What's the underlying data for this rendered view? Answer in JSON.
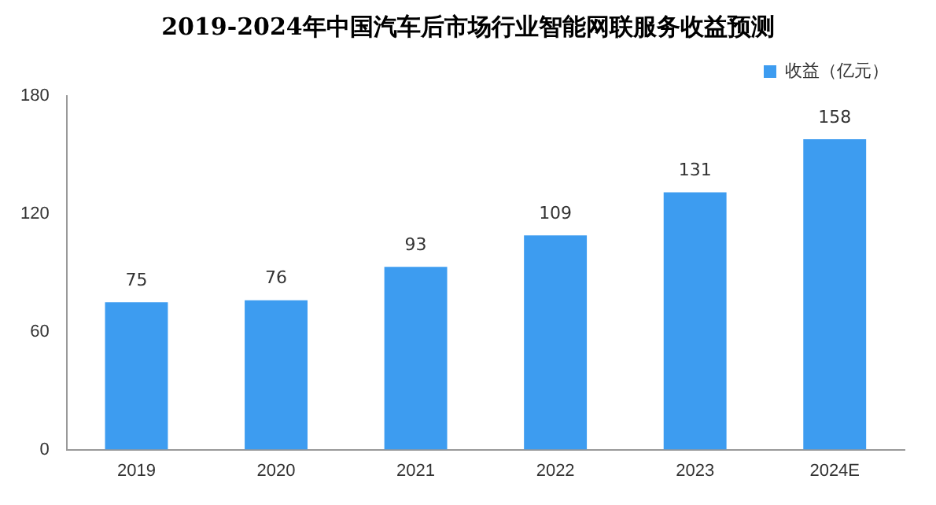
{
  "chart_data": {
    "type": "bar",
    "title": "2019-2024年中国汽车后市场行业智能网联服务收益预测",
    "categories": [
      "2019",
      "2020",
      "2021",
      "2022",
      "2023",
      "2024E"
    ],
    "series": [
      {
        "name": "收益（亿元）",
        "color": "#3d9cf0",
        "values": [
          75,
          76,
          93,
          109,
          131,
          158
        ]
      }
    ],
    "ylim": [
      0,
      180
    ],
    "yticks": [
      0,
      60,
      120,
      180
    ],
    "grid": false,
    "legend": "top right",
    "data_labels": true
  }
}
